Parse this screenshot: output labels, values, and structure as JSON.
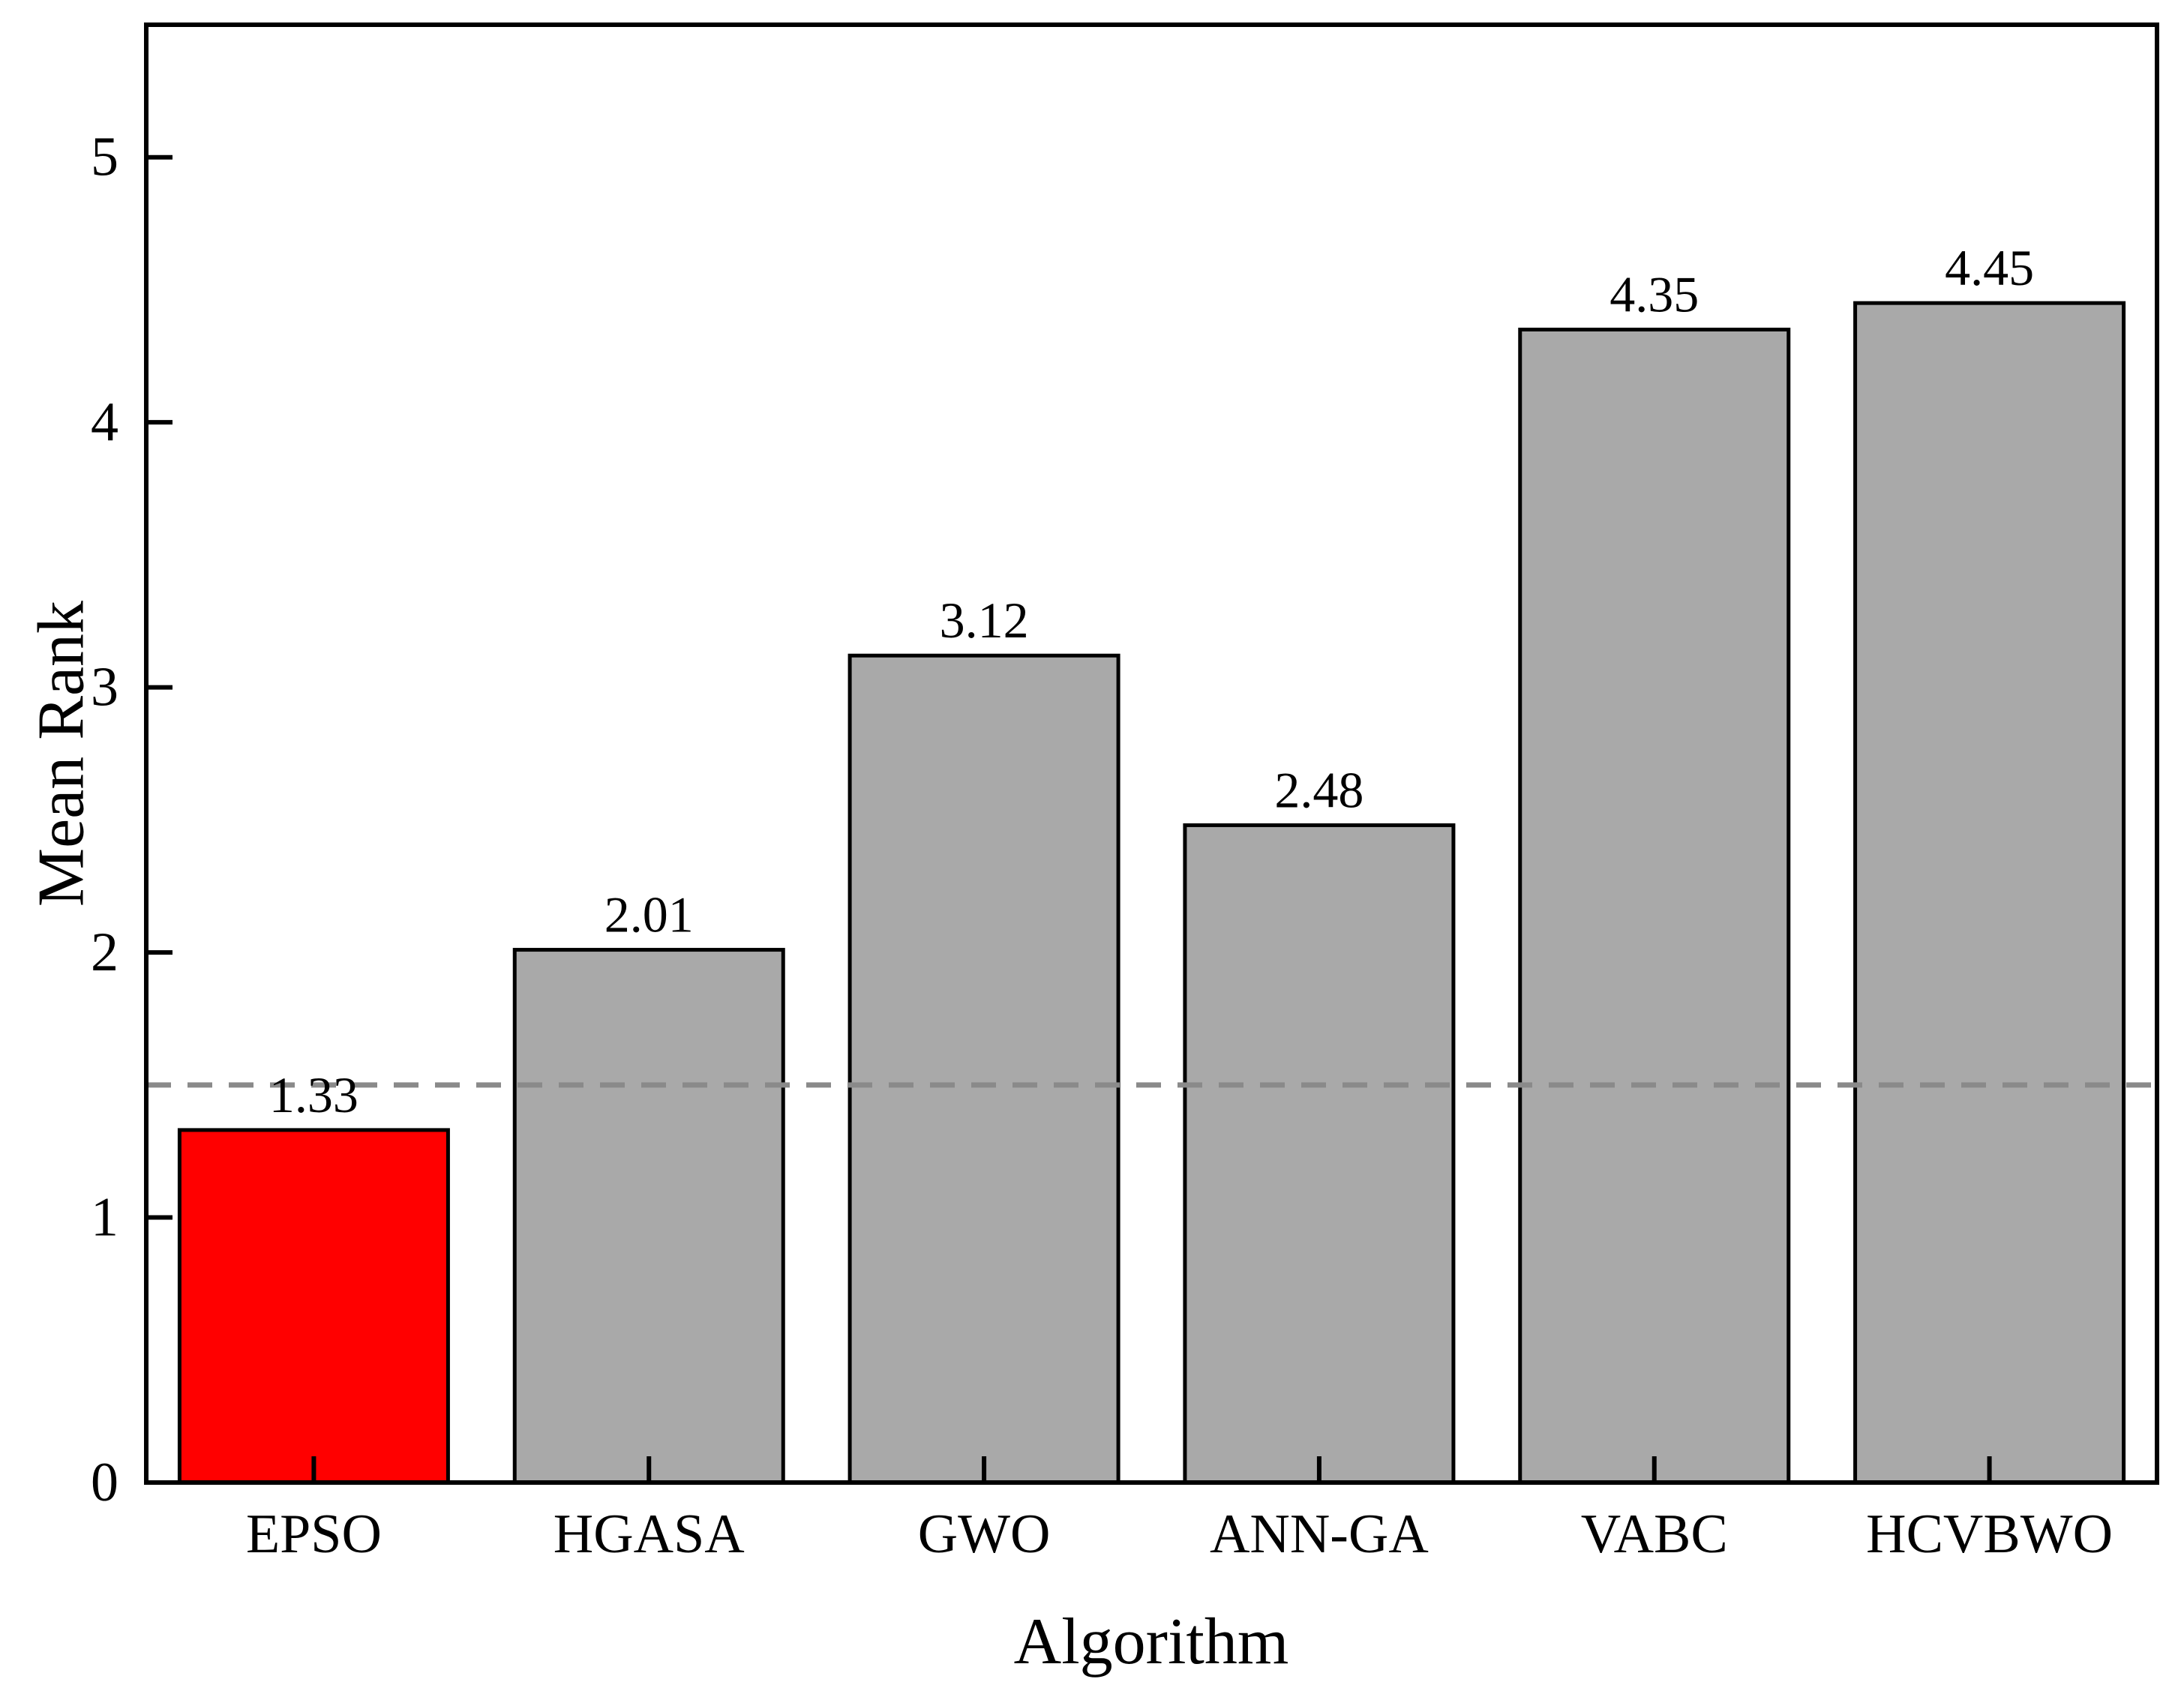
{
  "chart_data": {
    "type": "bar",
    "title": "",
    "categories": [
      "EPSO",
      "HGASA",
      "GWO",
      "ANN-GA",
      "VABC",
      "HCVBWO"
    ],
    "values": [
      1.33,
      2.01,
      3.12,
      2.48,
      4.35,
      4.45
    ],
    "value_labels": [
      "1.33",
      "2.01",
      "3.12",
      "2.48",
      "4.35",
      "4.45"
    ],
    "xlabel": "Algorithm",
    "ylabel": "Mean Rank",
    "ylim": [
      0,
      5.5
    ],
    "yticks": [
      0,
      1,
      2,
      3,
      4,
      5
    ],
    "ytick_labels": [
      "0",
      "1",
      "2",
      "3",
      "4",
      "5"
    ],
    "grid": false,
    "legend": null,
    "bar_colors": [
      "#ff0000",
      "#a9a9a9",
      "#a9a9a9",
      "#a9a9a9",
      "#a9a9a9",
      "#a9a9a9"
    ],
    "bar_edge_color": "#000000",
    "highlight_color": "#ff0000",
    "frame_color": "#000000",
    "reference_line": {
      "value": 1.5,
      "style": "dashed",
      "color": "#8a8a8a"
    }
  }
}
